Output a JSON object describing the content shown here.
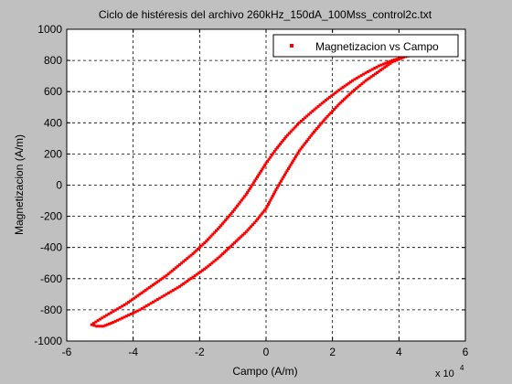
{
  "chart_data": {
    "type": "scatter",
    "title": "Ciclo de histéresis del archivo 260kHz_150dA_100Mss_control2c.txt",
    "xlabel": "Campo (A/m)",
    "ylabel": "Magnetizacion (A/m)",
    "x_exponent_label": "x 10",
    "x_exponent_power": "4",
    "x_multiplier": 10000,
    "xlim": [
      -60000,
      60000
    ],
    "ylim": [
      -1000,
      1000
    ],
    "x_ticks": [
      -60000,
      -40000,
      -20000,
      0,
      20000,
      40000,
      60000
    ],
    "x_tick_labels": [
      "-6",
      "-4",
      "-2",
      "0",
      "2",
      "4",
      "6"
    ],
    "y_ticks": [
      -1000,
      -800,
      -600,
      -400,
      -200,
      0,
      200,
      400,
      600,
      800,
      1000
    ],
    "y_tick_labels": [
      "-1000",
      "-800",
      "-600",
      "-400",
      "-200",
      "0",
      "200",
      "400",
      "600",
      "800",
      "1000"
    ],
    "grid": true,
    "grid_style": "dashed",
    "legend_position": "top-right",
    "series": [
      {
        "name": "Magnetizacion vs Campo",
        "color": "#ff0000",
        "marker": "dot",
        "loop_upper": [
          [
            -52500,
            -895
          ],
          [
            -50000,
            -860
          ],
          [
            -46000,
            -810
          ],
          [
            -42000,
            -760
          ],
          [
            -38000,
            -700
          ],
          [
            -34000,
            -640
          ],
          [
            -30000,
            -580
          ],
          [
            -26000,
            -510
          ],
          [
            -22000,
            -440
          ],
          [
            -18000,
            -360
          ],
          [
            -14000,
            -270
          ],
          [
            -10000,
            -170
          ],
          [
            -6000,
            -60
          ],
          [
            -3000,
            40
          ],
          [
            0,
            140
          ],
          [
            3000,
            230
          ],
          [
            6000,
            310
          ],
          [
            10000,
            400
          ],
          [
            14000,
            475
          ],
          [
            18000,
            545
          ],
          [
            22000,
            610
          ],
          [
            26000,
            670
          ],
          [
            30000,
            720
          ],
          [
            34000,
            765
          ],
          [
            38000,
            800
          ],
          [
            42000,
            825
          ],
          [
            45000,
            840
          ]
        ],
        "loop_lower": [
          [
            45000,
            840
          ],
          [
            42000,
            825
          ],
          [
            38000,
            790
          ],
          [
            34000,
            730
          ],
          [
            30000,
            670
          ],
          [
            26000,
            600
          ],
          [
            22000,
            520
          ],
          [
            18000,
            430
          ],
          [
            14000,
            330
          ],
          [
            10000,
            220
          ],
          [
            6000,
            80
          ],
          [
            3000,
            -30
          ],
          [
            0,
            -150
          ],
          [
            -3000,
            -230
          ],
          [
            -6000,
            -300
          ],
          [
            -10000,
            -380
          ],
          [
            -14000,
            -460
          ],
          [
            -18000,
            -530
          ],
          [
            -22000,
            -590
          ],
          [
            -26000,
            -650
          ],
          [
            -30000,
            -700
          ],
          [
            -34000,
            -750
          ],
          [
            -38000,
            -800
          ],
          [
            -42000,
            -840
          ],
          [
            -46000,
            -880
          ],
          [
            -49000,
            -905
          ],
          [
            -51000,
            -905
          ],
          [
            -52500,
            -895
          ]
        ]
      }
    ]
  }
}
